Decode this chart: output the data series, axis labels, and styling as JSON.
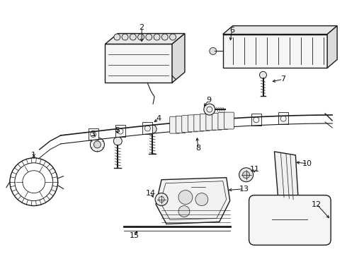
{
  "bg_color": "#ffffff",
  "line_color": "#1a1a1a",
  "label_color": "#111111",
  "figw": 4.9,
  "figh": 3.6,
  "dpi": 100
}
